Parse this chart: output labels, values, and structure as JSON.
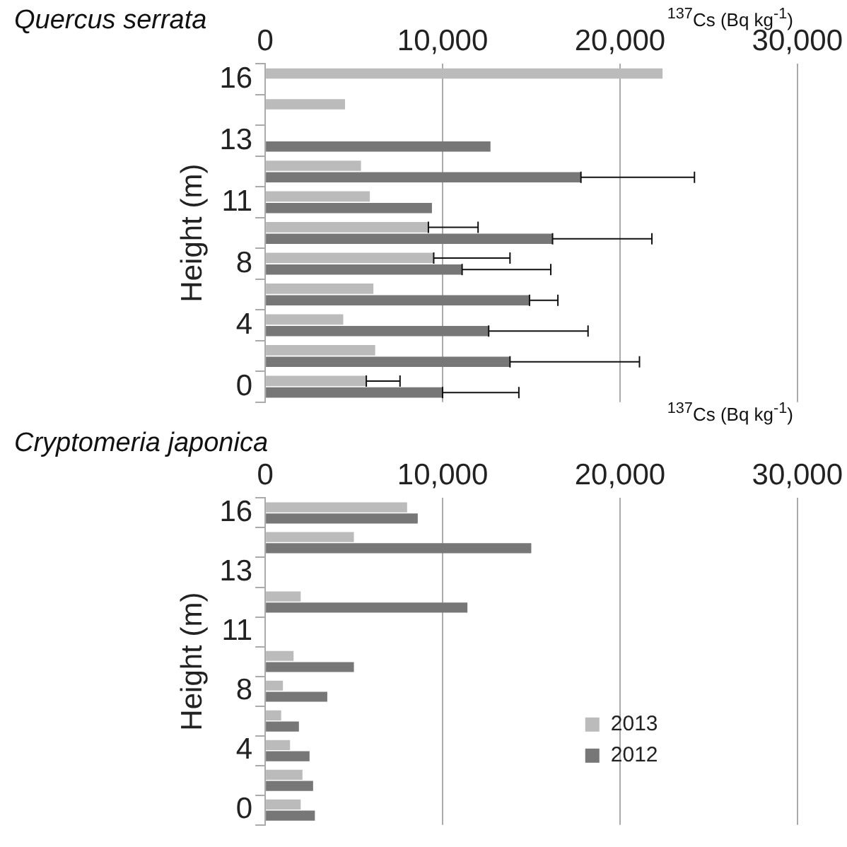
{
  "chart_data": [
    {
      "type": "bar",
      "orientation": "horizontal",
      "title": "Quercus serrata",
      "xlabel": "$^{137}$Cs (Bq kg$^{-1}$)",
      "ylabel": "Height (m)",
      "categories": [
        "16",
        null,
        "13",
        null,
        "11",
        null,
        "8",
        null,
        "4",
        null,
        "0"
      ],
      "series": [
        {
          "color": "#bbbbbb",
          "values": [
            22400,
            4500,
            null,
            5400,
            5900,
            9200,
            9500,
            6100,
            4400,
            6200,
            5700
          ],
          "errors": [
            null,
            null,
            null,
            null,
            null,
            [
              9200,
              12000
            ],
            [
              9500,
              13800
            ],
            null,
            null,
            null,
            [
              5700,
              7600
            ]
          ]
        },
        {
          "color": "#777777",
          "values": [
            null,
            null,
            12700,
            17800,
            9400,
            16200,
            11100,
            14900,
            12600,
            13800,
            10000
          ],
          "errors": [
            null,
            null,
            null,
            [
              17800,
              24200
            ],
            null,
            [
              16200,
              21800
            ],
            [
              11100,
              16100
            ],
            [
              14900,
              16500
            ],
            [
              12600,
              18200
            ],
            [
              13800,
              21100
            ],
            [
              10000,
              14300
            ]
          ]
        }
      ],
      "xlim": [
        0,
        30000
      ],
      "xticks": [
        0,
        {
          "value": 10000,
          "label": "10,000"
        },
        {
          "value": 20000,
          "label": "20,000"
        },
        {
          "value": 30000,
          "label": "30,000"
        }
      ],
      "grid": "x",
      "legend": false
    },
    {
      "type": "bar",
      "orientation": "horizontal",
      "title": "Cryptomeria japonica",
      "xlabel": "$^{137}$Cs (Bq kg$^{-1}$)",
      "ylabel": "Height (m)",
      "categories": [
        "16",
        null,
        "13",
        null,
        "11",
        null,
        "8",
        null,
        "4",
        null,
        "0"
      ],
      "series": [
        {
          "name": "2013",
          "color": "#bbbbbb",
          "values": [
            8000,
            5000,
            null,
            2000,
            null,
            1600,
            1000,
            900,
            1400,
            2100,
            2000
          ]
        },
        {
          "name": "2012",
          "color": "#777777",
          "values": [
            8600,
            15000,
            null,
            11400,
            null,
            5000,
            3500,
            1900,
            2500,
            2700,
            2800
          ]
        }
      ],
      "xlim": [
        0,
        30000
      ],
      "xticks": [
        0,
        {
          "value": 10000,
          "label": "10,000"
        },
        {
          "value": 20000,
          "label": "20,000"
        },
        {
          "value": 30000,
          "label": "30,000"
        }
      ],
      "grid": "x",
      "legend": "bottom right"
    }
  ]
}
